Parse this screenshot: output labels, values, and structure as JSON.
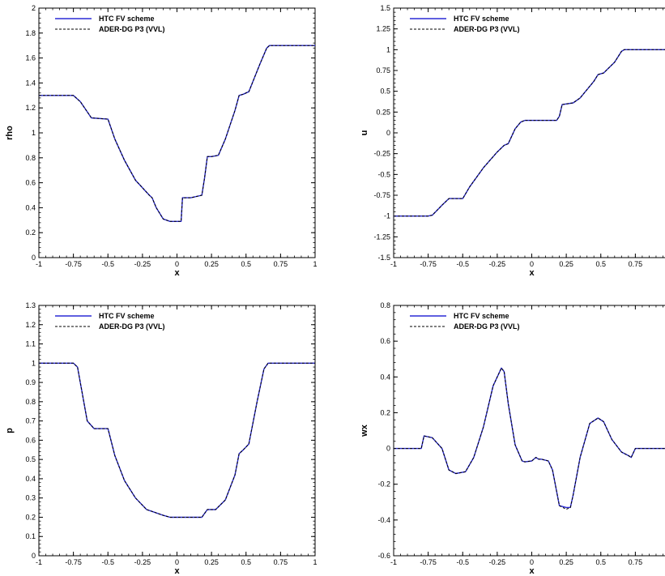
{
  "colors": {
    "fv_line": "#2b2bd6",
    "dg_line": "#000000",
    "axis": "#000000"
  },
  "legend": {
    "fv_label": "HTC FV scheme",
    "dg_label": "ADER-DG P3 (VVL)",
    "position": "top-left"
  },
  "chart_data": [
    {
      "type": "line",
      "xlabel": "x",
      "ylabel": "rho",
      "xlim": [
        -1,
        1
      ],
      "ylim": [
        0,
        2
      ],
      "xticks": [
        -1,
        -0.75,
        -0.5,
        -0.25,
        0,
        0.25,
        0.5,
        0.75,
        1
      ],
      "xtick_labels": [
        "-1",
        "-0.75",
        "-0.5",
        "-0.25",
        "0",
        "0.25",
        "0.5",
        "0.75",
        "1"
      ],
      "yticks": [
        0,
        0.2,
        0.4,
        0.6,
        0.8,
        1,
        1.2,
        1.4,
        1.6,
        1.8,
        2
      ],
      "ytick_labels": [
        "0",
        "0.2",
        "0.4",
        "0.6",
        "0.8",
        "1",
        "1.2",
        "1.4",
        "1.6",
        "1.8",
        "2"
      ],
      "x": [
        -1,
        -0.75,
        -0.7,
        -0.62,
        -0.5,
        -0.45,
        -0.38,
        -0.3,
        -0.2,
        -0.18,
        -0.15,
        -0.1,
        -0.05,
        0.0,
        0.03,
        0.04,
        0.06,
        0.1,
        0.18,
        0.2,
        0.22,
        0.25,
        0.3,
        0.35,
        0.42,
        0.45,
        0.48,
        0.52,
        0.6,
        0.65,
        0.67,
        0.7,
        1
      ],
      "series": [
        {
          "name": "HTC FV scheme",
          "values": [
            1.3,
            1.3,
            1.25,
            1.12,
            1.11,
            0.95,
            0.78,
            0.62,
            0.5,
            0.48,
            0.4,
            0.31,
            0.29,
            0.29,
            0.29,
            0.48,
            0.48,
            0.48,
            0.5,
            0.64,
            0.81,
            0.81,
            0.82,
            0.95,
            1.18,
            1.3,
            1.31,
            1.33,
            1.55,
            1.68,
            1.7,
            1.7,
            1.7
          ]
        },
        {
          "name": "ADER-DG P3 (VVL)",
          "values": [
            1.3,
            1.3,
            1.25,
            1.12,
            1.11,
            0.95,
            0.78,
            0.62,
            0.5,
            0.48,
            0.4,
            0.31,
            0.29,
            0.29,
            0.29,
            0.48,
            0.48,
            0.48,
            0.5,
            0.64,
            0.81,
            0.81,
            0.82,
            0.95,
            1.18,
            1.3,
            1.31,
            1.33,
            1.55,
            1.68,
            1.7,
            1.7,
            1.7
          ]
        }
      ]
    },
    {
      "type": "line",
      "xlabel": "x",
      "ylabel": "u",
      "xlim": [
        -1,
        1
      ],
      "ylim": [
        -1.5,
        1.5
      ],
      "xticks": [
        -1,
        -0.75,
        -0.5,
        -0.25,
        0,
        0.25,
        0.5,
        0.75
      ],
      "xtick_labels": [
        "-1",
        "-0.75",
        "-0.5",
        "-0.25",
        "0",
        "0.25",
        "0.5",
        "0.75"
      ],
      "yticks": [
        -1.5,
        -1.25,
        -1,
        -0.75,
        -0.5,
        -0.25,
        0,
        0.25,
        0.5,
        0.75,
        1,
        1.25,
        1.5
      ],
      "ytick_labels": [
        "-1.5",
        "-1.25",
        "-1",
        "-0.75",
        "-0.5",
        "-0.25",
        "0",
        "0.25",
        "0.5",
        "0.75",
        "1",
        "1.25",
        "1.5"
      ],
      "x": [
        -1,
        -0.75,
        -0.72,
        -0.65,
        -0.6,
        -0.5,
        -0.45,
        -0.35,
        -0.25,
        -0.2,
        -0.17,
        -0.12,
        -0.08,
        -0.05,
        0.0,
        0.18,
        0.2,
        0.22,
        0.3,
        0.35,
        0.45,
        0.48,
        0.52,
        0.6,
        0.65,
        0.67,
        1
      ],
      "series": [
        {
          "name": "HTC FV scheme",
          "values": [
            -1.0,
            -1.0,
            -0.99,
            -0.87,
            -0.79,
            -0.79,
            -0.65,
            -0.42,
            -0.23,
            -0.15,
            -0.13,
            0.05,
            0.13,
            0.15,
            0.15,
            0.15,
            0.2,
            0.34,
            0.36,
            0.42,
            0.62,
            0.7,
            0.72,
            0.85,
            0.98,
            1.0,
            1.0
          ]
        },
        {
          "name": "ADER-DG P3 (VVL)",
          "values": [
            -1.0,
            -1.0,
            -0.99,
            -0.87,
            -0.79,
            -0.79,
            -0.65,
            -0.42,
            -0.23,
            -0.15,
            -0.13,
            0.05,
            0.13,
            0.15,
            0.15,
            0.15,
            0.2,
            0.34,
            0.36,
            0.42,
            0.62,
            0.7,
            0.72,
            0.85,
            0.98,
            1.0,
            1.0
          ]
        }
      ]
    },
    {
      "type": "line",
      "xlabel": "x",
      "ylabel": "p",
      "xlim": [
        -1,
        1
      ],
      "ylim": [
        0,
        1.3
      ],
      "xticks": [
        -1,
        -0.75,
        -0.5,
        -0.25,
        0,
        0.25,
        0.5,
        0.75,
        1
      ],
      "xtick_labels": [
        "-1",
        "-0.75",
        "-0.5",
        "-0.25",
        "0",
        "0.25",
        "0.5",
        "0.75",
        "1"
      ],
      "yticks": [
        0,
        0.1,
        0.2,
        0.3,
        0.4,
        0.5,
        0.6,
        0.7,
        0.8,
        0.9,
        1,
        1.1,
        1.2,
        1.3
      ],
      "ytick_labels": [
        "0",
        "0.1",
        "0.2",
        "0.3",
        "0.4",
        "0.5",
        "0.6",
        "0.7",
        "0.8",
        "0.9",
        "1",
        "1.1",
        "1.2",
        "1.3"
      ],
      "x": [
        -1,
        -0.75,
        -0.72,
        -0.65,
        -0.6,
        -0.5,
        -0.45,
        -0.38,
        -0.3,
        -0.22,
        -0.18,
        -0.1,
        -0.05,
        0.18,
        0.2,
        0.22,
        0.28,
        0.35,
        0.42,
        0.45,
        0.48,
        0.52,
        0.58,
        0.63,
        0.66,
        0.7,
        1
      ],
      "series": [
        {
          "name": "HTC FV scheme",
          "values": [
            1.0,
            1.0,
            0.98,
            0.7,
            0.66,
            0.66,
            0.52,
            0.39,
            0.3,
            0.24,
            0.23,
            0.21,
            0.2,
            0.2,
            0.22,
            0.24,
            0.24,
            0.29,
            0.42,
            0.53,
            0.55,
            0.58,
            0.8,
            0.97,
            1.0,
            1.0,
            1.0
          ]
        },
        {
          "name": "ADER-DG P3 (VVL)",
          "values": [
            1.0,
            1.0,
            0.98,
            0.7,
            0.66,
            0.66,
            0.52,
            0.39,
            0.3,
            0.24,
            0.23,
            0.21,
            0.2,
            0.2,
            0.22,
            0.24,
            0.24,
            0.29,
            0.42,
            0.53,
            0.55,
            0.58,
            0.8,
            0.97,
            1.0,
            1.0,
            1.0
          ]
        }
      ]
    },
    {
      "type": "line",
      "xlabel": "x",
      "ylabel": "wx",
      "xlim": [
        -1,
        1
      ],
      "ylim": [
        -0.6,
        0.8
      ],
      "xticks": [
        -1,
        -0.75,
        -0.5,
        -0.25,
        0,
        0.25,
        0.5,
        0.75
      ],
      "xtick_labels": [
        "-1",
        "-0.75",
        "-0.5",
        "-0.25",
        "0",
        "0.25",
        "0.5",
        "0.75"
      ],
      "yticks": [
        -0.6,
        -0.4,
        -0.2,
        0,
        0.2,
        0.4,
        0.6,
        0.8
      ],
      "ytick_labels": [
        "-0.6",
        "-0.4",
        "-0.2",
        "0",
        "0.2",
        "0.4",
        "0.6",
        "0.8"
      ],
      "x": [
        -1,
        -0.8,
        -0.78,
        -0.72,
        -0.65,
        -0.6,
        -0.55,
        -0.48,
        -0.42,
        -0.35,
        -0.28,
        -0.22,
        -0.2,
        -0.17,
        -0.12,
        -0.07,
        -0.05,
        0.0,
        0.03,
        0.05,
        0.07,
        0.12,
        0.15,
        0.2,
        0.25,
        0.28,
        0.3,
        0.35,
        0.42,
        0.48,
        0.52,
        0.58,
        0.65,
        0.7,
        0.72,
        0.75,
        1
      ],
      "series": [
        {
          "name": "HTC FV scheme",
          "values": [
            0.0,
            0.0,
            0.07,
            0.06,
            0.0,
            -0.12,
            -0.14,
            -0.13,
            -0.05,
            0.12,
            0.35,
            0.45,
            0.43,
            0.25,
            0.02,
            -0.07,
            -0.075,
            -0.07,
            -0.05,
            -0.06,
            -0.06,
            -0.07,
            -0.12,
            -0.32,
            -0.33,
            -0.33,
            -0.26,
            -0.05,
            0.14,
            0.17,
            0.15,
            0.05,
            -0.02,
            -0.04,
            -0.05,
            0.0,
            0.0
          ]
        },
        {
          "name": "ADER-DG P3 (VVL)",
          "values": [
            0.0,
            0.0,
            0.07,
            0.06,
            0.0,
            -0.12,
            -0.14,
            -0.13,
            -0.05,
            0.12,
            0.35,
            0.45,
            0.43,
            0.25,
            0.02,
            -0.07,
            -0.075,
            -0.07,
            -0.05,
            -0.06,
            -0.06,
            -0.07,
            -0.12,
            -0.32,
            -0.34,
            -0.33,
            -0.26,
            -0.05,
            0.14,
            0.17,
            0.15,
            0.05,
            -0.02,
            -0.04,
            -0.05,
            0.0,
            0.0
          ]
        }
      ]
    }
  ]
}
